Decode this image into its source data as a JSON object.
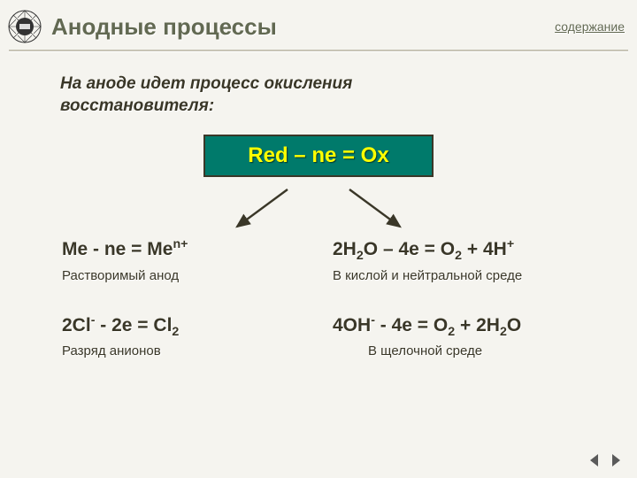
{
  "header": {
    "title": "Анодные процессы",
    "contents_link": "содержание"
  },
  "subtitle_line1": "На аноде идет процесс окисления",
  "subtitle_line2": "восстановителя:",
  "main_formula": "Red – ne = Ox",
  "equations": {
    "eq1": "Ме - nе = Ме<sup>n+</sup>",
    "eq2": "2H<sub>2</sub>O – 4e = O<sub>2</sub> + 4H<sup>+</sup>",
    "eq3": "2Cl<sup>-</sup> - 2e = Cl<sub>2</sub>",
    "eq4": "4OH<sup>-</sup> - 4e  =  O<sub>2</sub>  + 2H<sub>2</sub>O"
  },
  "descriptions": {
    "d1": "Растворимый анод",
    "d2": "В кислой и  нейтральной среде",
    "d3": "Разряд анионов",
    "d4": "В щелочной среде"
  },
  "colors": {
    "bg": "#f5f4ef",
    "text": "#3a3728",
    "muted": "#626952",
    "box_bg": "#007a6b",
    "box_border": "#3a3728",
    "box_text": "#ffff00",
    "arrow": "#3a3728",
    "nav": "#5a5a5a"
  }
}
